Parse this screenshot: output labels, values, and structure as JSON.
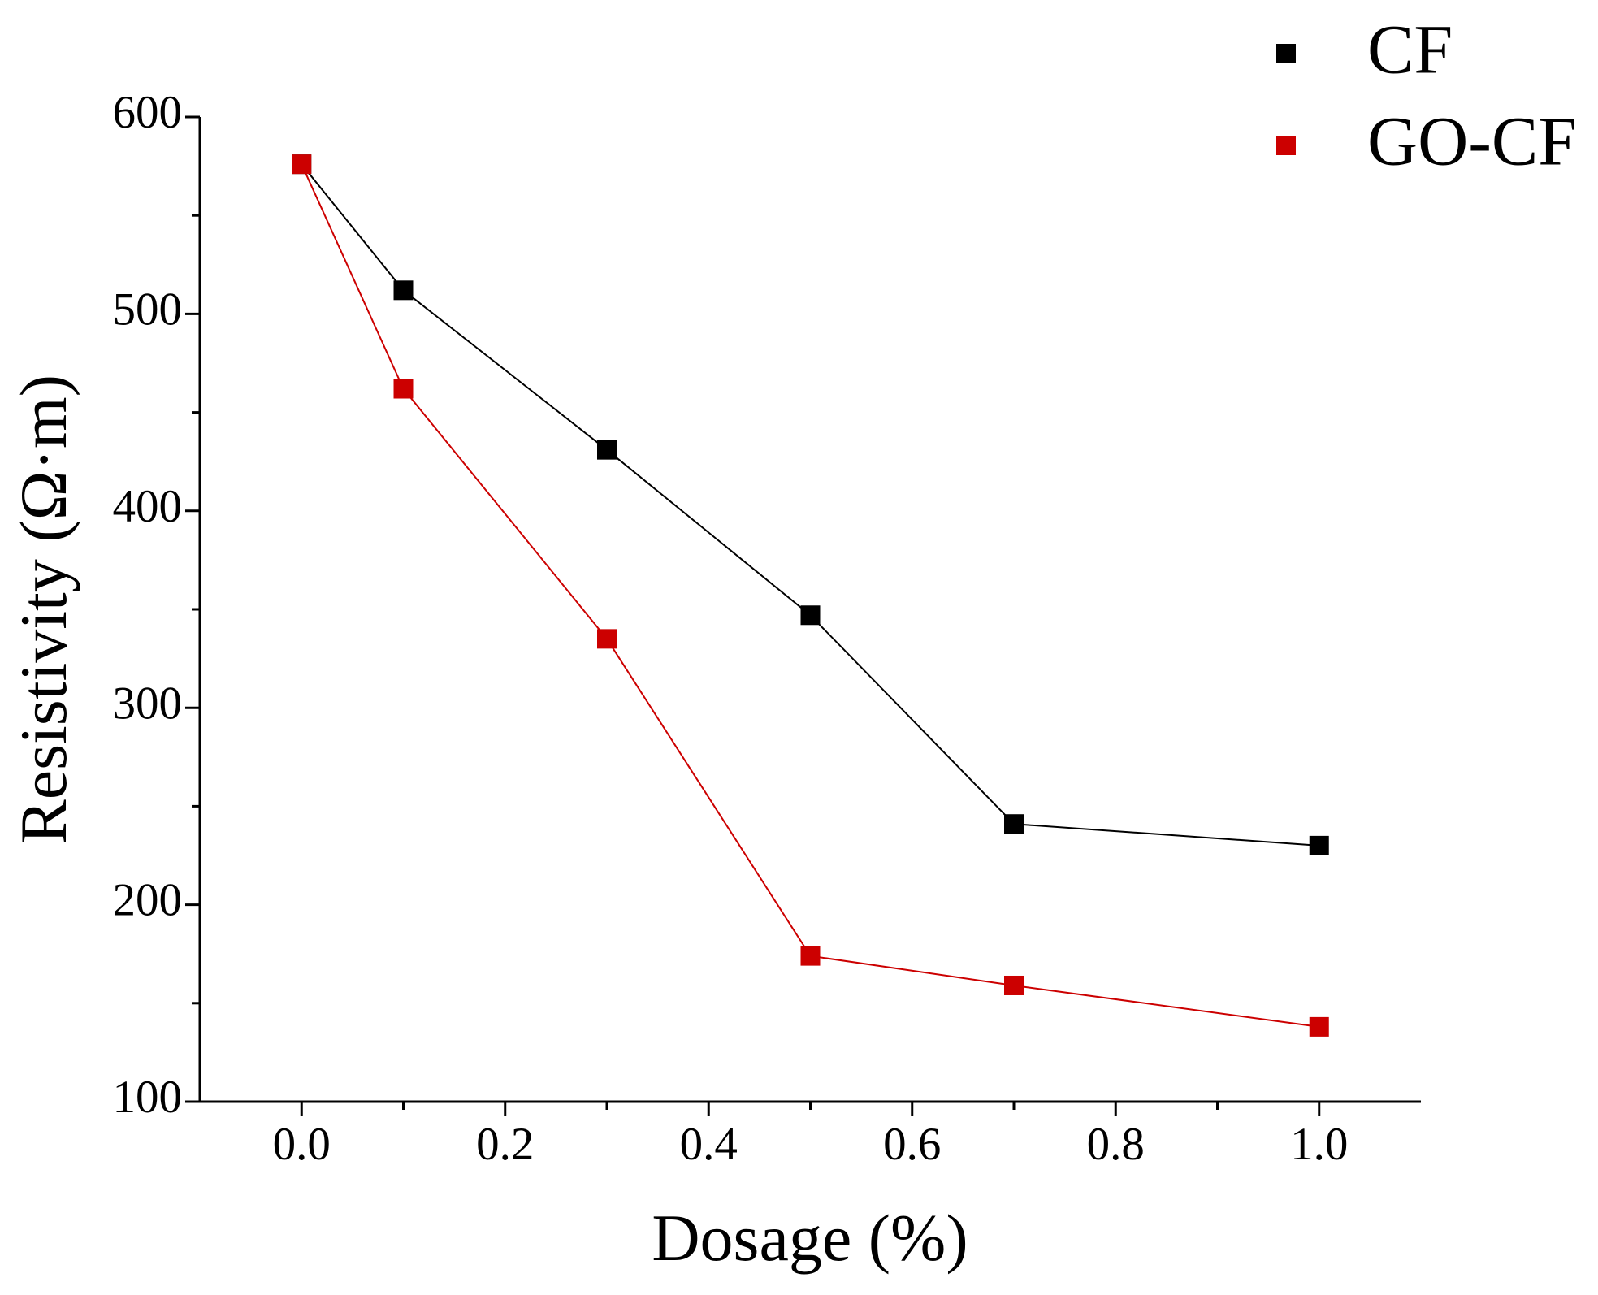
{
  "chart_data": {
    "type": "line",
    "xlabel": "Dosage (%)",
    "ylabel": "Resistivity (Ω·m)",
    "x": [
      0,
      0.1,
      0.3,
      0.5,
      0.7,
      1.0
    ],
    "series": [
      {
        "name": "CF",
        "color": "#000000",
        "values": [
          576,
          512,
          431,
          347,
          241,
          230
        ]
      },
      {
        "name": "GO-CF",
        "color": "#cc0000",
        "values": [
          576,
          462,
          335,
          174,
          159,
          138
        ]
      }
    ],
    "xlim": [
      -0.1,
      1.1
    ],
    "xticks": [
      {
        "value": 0,
        "label": "0.0"
      },
      0.2,
      0.4,
      0.6,
      0.8,
      {
        "value": 1,
        "label": "1.0"
      }
    ],
    "ylim": [
      100,
      600
    ],
    "yticks": [
      100,
      200,
      300,
      400,
      500,
      600
    ],
    "legend": "upper right"
  }
}
